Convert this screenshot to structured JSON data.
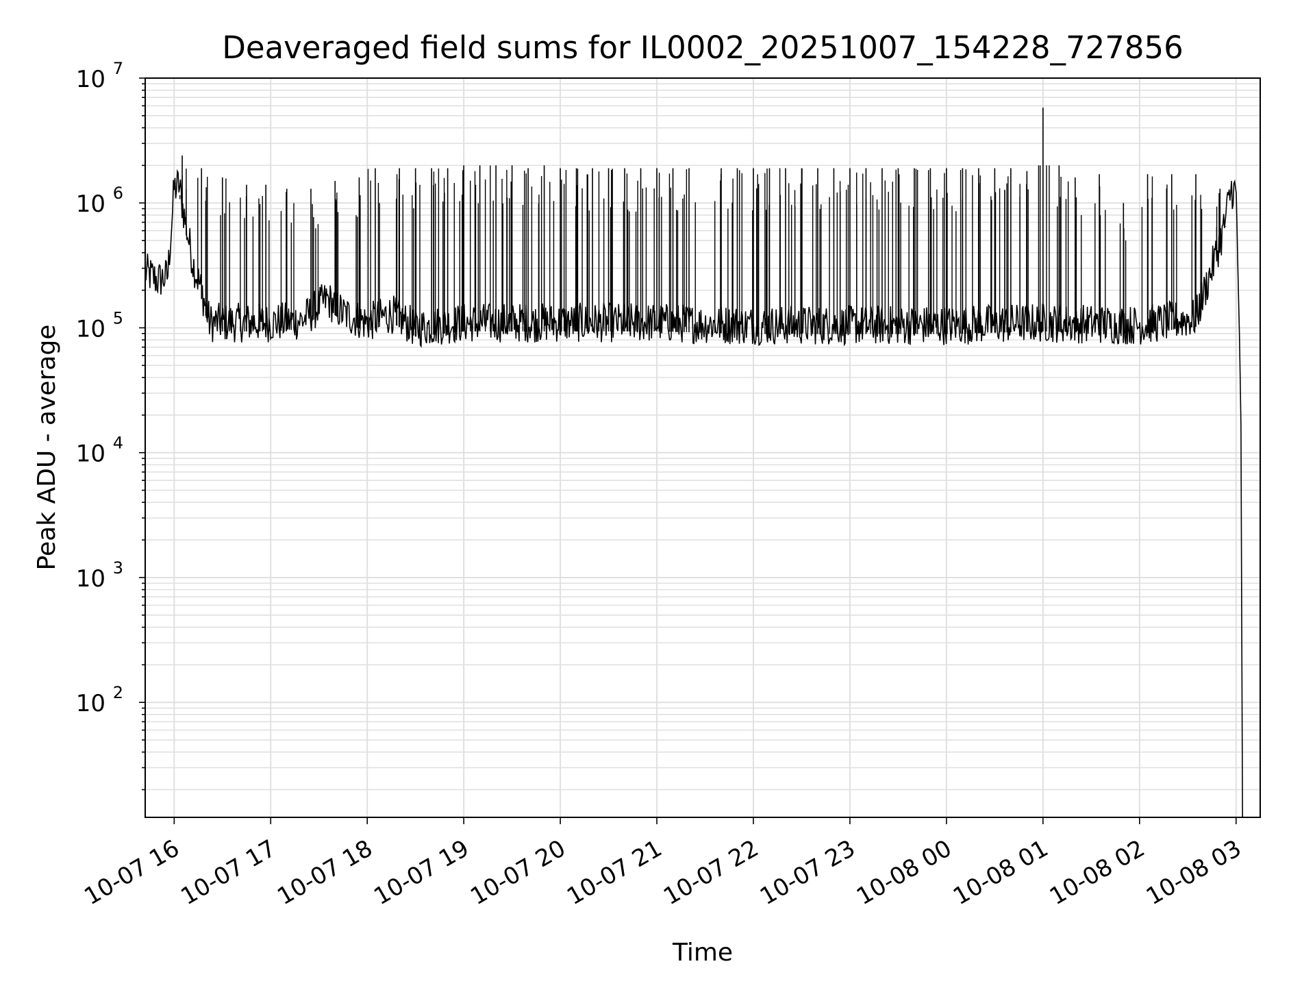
{
  "chart_data": {
    "type": "line",
    "title": "Deaveraged field sums for IL0002_20251007_154228_727856",
    "xlabel": "Time",
    "ylabel": "Peak ADU - average",
    "yscale": "log",
    "grid": true,
    "line_color": "#000000",
    "grid_color": "#e0e0e0",
    "xlim": [
      "2025-10-07 15:42",
      "2025-10-08 03:15"
    ],
    "ylim": [
      12,
      10000000
    ],
    "x_ticks": [
      "10-07 16",
      "10-07 17",
      "10-07 18",
      "10-07 19",
      "10-07 20",
      "10-07 21",
      "10-07 22",
      "10-07 23",
      "10-08 00",
      "10-08 01",
      "10-08 02",
      "10-08 03"
    ],
    "y_ticks": [
      {
        "base": "10",
        "exp": "2"
      },
      {
        "base": "10",
        "exp": "3"
      },
      {
        "base": "10",
        "exp": "4"
      },
      {
        "base": "10",
        "exp": "5"
      },
      {
        "base": "10",
        "exp": "6"
      },
      {
        "base": "10",
        "exp": "7"
      }
    ],
    "series": [
      {
        "baseline": [
          [
            "2025-10-07 15:42",
            280000
          ],
          [
            "2025-10-07 15:50",
            240000
          ],
          [
            "2025-10-07 15:56",
            260000
          ],
          [
            "2025-10-07 16:00",
            1300000
          ],
          [
            "2025-10-07 16:03",
            1400000
          ],
          [
            "2025-10-07 16:07",
            700000
          ],
          [
            "2025-10-07 16:12",
            320000
          ],
          [
            "2025-10-07 16:17",
            200000
          ],
          [
            "2025-10-07 16:22",
            110000
          ],
          [
            "2025-10-07 16:40",
            110000
          ],
          [
            "2025-10-07 17:00",
            110000
          ],
          [
            "2025-10-07 17:20",
            115000
          ],
          [
            "2025-10-07 17:35",
            170000
          ],
          [
            "2025-10-07 17:45",
            130000
          ],
          [
            "2025-10-07 18:00",
            110000
          ],
          [
            "2025-10-07 18:15",
            130000
          ],
          [
            "2025-10-07 18:30",
            100000
          ],
          [
            "2025-10-07 19:00",
            110000
          ],
          [
            "2025-10-07 20:00",
            110000
          ],
          [
            "2025-10-07 21:00",
            110000
          ],
          [
            "2025-10-07 22:00",
            105000
          ],
          [
            "2025-10-07 23:00",
            105000
          ],
          [
            "2025-10-08 00:00",
            105000
          ],
          [
            "2025-10-08 01:00",
            110000
          ],
          [
            "2025-10-08 02:00",
            105000
          ],
          [
            "2025-10-08 02:35",
            120000
          ],
          [
            "2025-10-08 02:45",
            300000
          ],
          [
            "2025-10-08 02:52",
            600000
          ],
          [
            "2025-10-08 02:57",
            1300000
          ],
          [
            "2025-10-08 03:00",
            1200000
          ],
          [
            "2025-10-08 03:02",
            100000
          ],
          [
            "2025-10-08 03:03",
            20000
          ],
          [
            "2025-10-08 03:04",
            12
          ]
        ],
        "spikes": [
          [
            "2025-10-07 16:05",
            2400000
          ],
          [
            "2025-10-07 16:17",
            1900000
          ],
          [
            "2025-10-07 16:30",
            1600000
          ],
          [
            "2025-10-07 16:45",
            1400000
          ],
          [
            "2025-10-07 16:57",
            1400000
          ],
          [
            "2025-10-07 17:10",
            1300000
          ],
          [
            "2025-10-07 17:25",
            1300000
          ],
          [
            "2025-10-07 17:40",
            1500000
          ],
          [
            "2025-10-07 17:55",
            1600000
          ],
          [
            "2025-10-07 18:05",
            1900000
          ],
          [
            "2025-10-07 18:20",
            1900000
          ],
          [
            "2025-10-07 18:30",
            1900000
          ],
          [
            "2025-10-07 18:40",
            1900000
          ],
          [
            "2025-10-07 18:50",
            1900000
          ],
          [
            "2025-10-07 19:00",
            2000000
          ],
          [
            "2025-10-07 19:10",
            2000000
          ],
          [
            "2025-10-07 19:20",
            2000000
          ],
          [
            "2025-10-07 19:30",
            2000000
          ],
          [
            "2025-10-07 19:40",
            1900000
          ],
          [
            "2025-10-07 19:50",
            2000000
          ],
          [
            "2025-10-07 20:00",
            1900000
          ],
          [
            "2025-10-07 20:10",
            1900000
          ],
          [
            "2025-10-07 20:20",
            1900000
          ],
          [
            "2025-10-07 20:30",
            1900000
          ],
          [
            "2025-10-07 20:40",
            1900000
          ],
          [
            "2025-10-07 20:50",
            1900000
          ],
          [
            "2025-10-07 21:00",
            1900000
          ],
          [
            "2025-10-07 21:10",
            1900000
          ],
          [
            "2025-10-07 21:20",
            1900000
          ],
          [
            "2025-10-07 21:40",
            1900000
          ],
          [
            "2025-10-07 21:50",
            1900000
          ],
          [
            "2025-10-07 22:00",
            1900000
          ],
          [
            "2025-10-07 22:10",
            1900000
          ],
          [
            "2025-10-07 22:20",
            1900000
          ],
          [
            "2025-10-07 22:30",
            1900000
          ],
          [
            "2025-10-07 22:40",
            1900000
          ],
          [
            "2025-10-07 22:50",
            1900000
          ],
          [
            "2025-10-07 23:00",
            1900000
          ],
          [
            "2025-10-07 23:10",
            1900000
          ],
          [
            "2025-10-07 23:20",
            1900000
          ],
          [
            "2025-10-07 23:30",
            1900000
          ],
          [
            "2025-10-07 23:40",
            1900000
          ],
          [
            "2025-10-07 23:50",
            1900000
          ],
          [
            "2025-10-08 00:00",
            1900000
          ],
          [
            "2025-10-08 00:10",
            1900000
          ],
          [
            "2025-10-08 00:20",
            1900000
          ],
          [
            "2025-10-08 00:30",
            1900000
          ],
          [
            "2025-10-08 00:40",
            1900000
          ],
          [
            "2025-10-08 00:50",
            1800000
          ],
          [
            "2025-10-08 01:00",
            5800000
          ],
          [
            "2025-10-08 01:10",
            2000000
          ],
          [
            "2025-10-08 01:20",
            1600000
          ],
          [
            "2025-10-08 01:35",
            1700000
          ],
          [
            "2025-10-08 01:50",
            1000000
          ],
          [
            "2025-10-08 02:05",
            1700000
          ],
          [
            "2025-10-08 02:20",
            1700000
          ],
          [
            "2025-10-08 02:35",
            1700000
          ],
          [
            "2025-10-08 02:50",
            1300000
          ]
        ]
      }
    ]
  }
}
